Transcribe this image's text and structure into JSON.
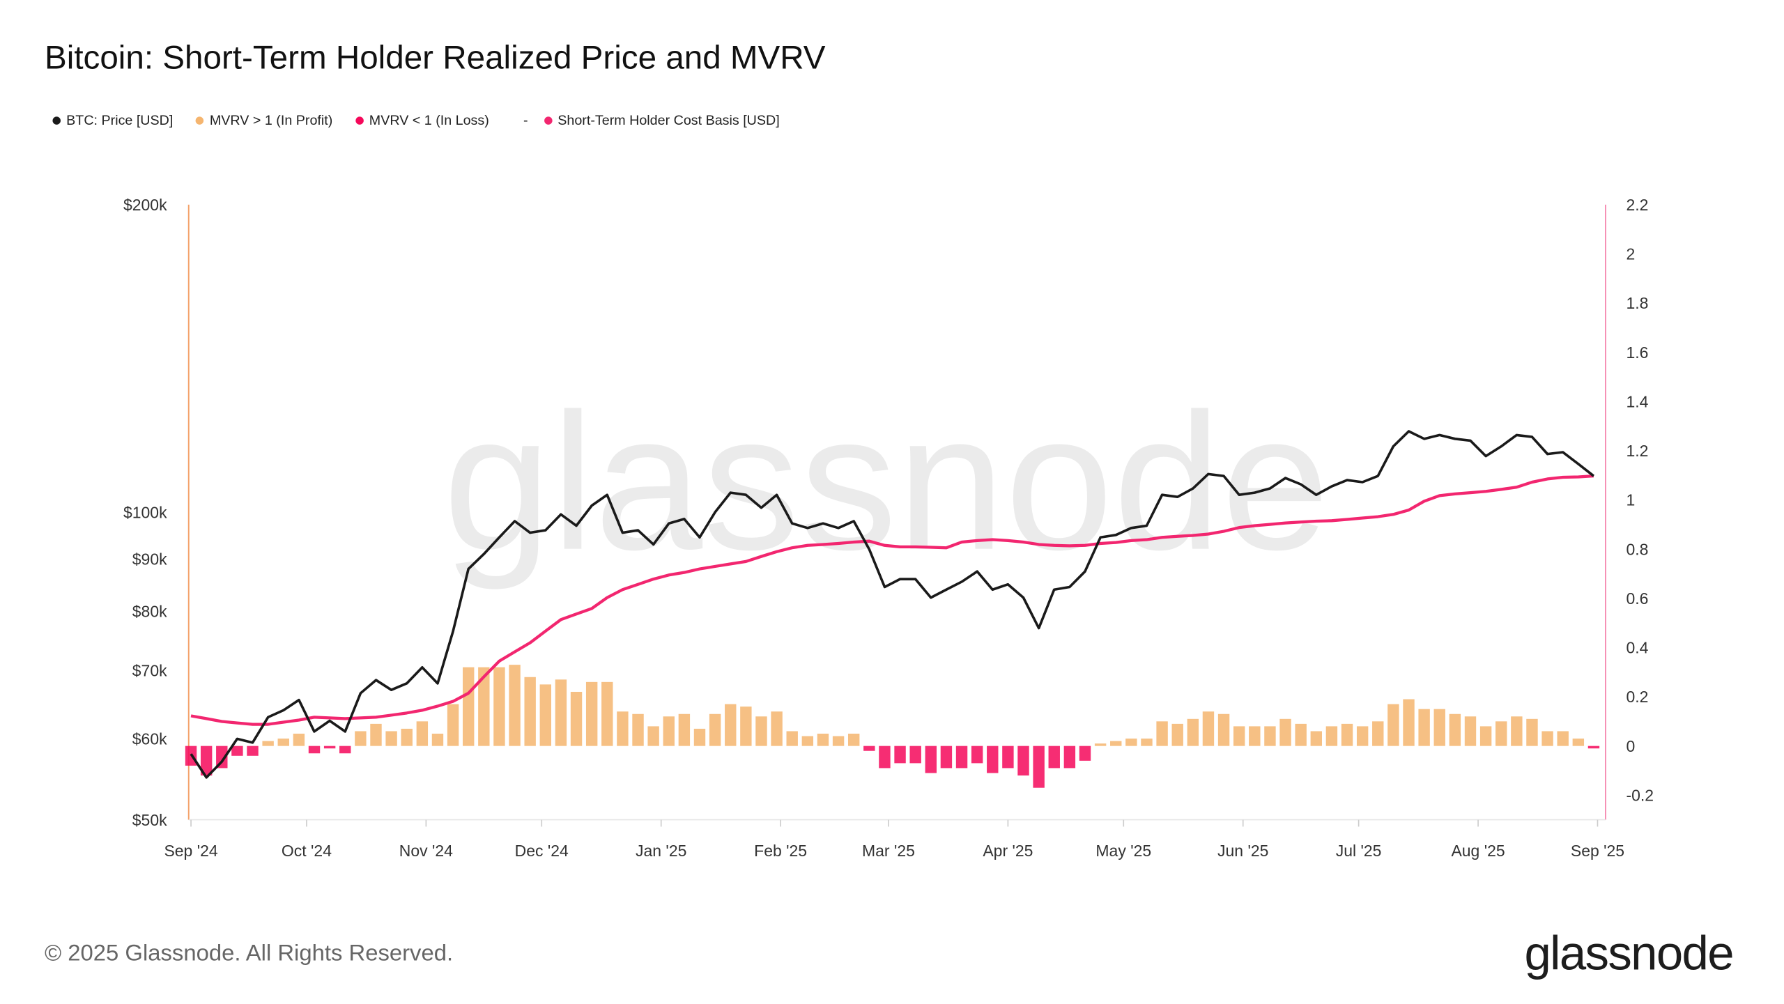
{
  "title": "Bitcoin: Short-Term Holder Realized Price and MVRV",
  "legend": [
    {
      "label": "BTC: Price [USD]",
      "color": "#1a1a1a"
    },
    {
      "label": "MVRV > 1 (In Profit)",
      "color": "#f5b56f"
    },
    {
      "label": "MVRV < 1 (In Loss)",
      "color": "#f5085a"
    },
    {
      "label": "Short-Term Holder Cost Basis [USD]",
      "color": "#f2266f"
    }
  ],
  "legend_separator": "-",
  "watermark": "glassnode",
  "footer": "© 2025 Glassnode. All Rights Reserved.",
  "logo": "glassnode",
  "chart_data": {
    "type": "line",
    "title": "Bitcoin: Short-Term Holder Realized Price and MVRV",
    "left_axis": {
      "scale": "log",
      "range": [
        50000,
        200000
      ],
      "ticks": [
        {
          "value": 200000,
          "label": "$200k"
        },
        {
          "value": 100000,
          "label": "$100k"
        },
        {
          "value": 90000,
          "label": "$90k"
        },
        {
          "value": 80000,
          "label": "$80k"
        },
        {
          "value": 70000,
          "label": "$70k"
        },
        {
          "value": 60000,
          "label": "$60k"
        },
        {
          "value": 50000,
          "label": "$50k"
        }
      ]
    },
    "right_axis": {
      "scale": "linear",
      "range": [
        -0.3,
        2.2
      ],
      "ticks": [
        "2.2",
        "2",
        "1.8",
        "1.6",
        "1.4",
        "1.2",
        "1",
        "0.8",
        "0.6",
        "0.4",
        "0.2",
        "0",
        "-0.2"
      ]
    },
    "x_axis": {
      "range": [
        "2024-09-01",
        "2025-09-01"
      ],
      "ticks": [
        {
          "date": "2024-09-01",
          "label": "Sep '24"
        },
        {
          "date": "2024-10-01",
          "label": "Oct '24"
        },
        {
          "date": "2024-11-01",
          "label": "Nov '24"
        },
        {
          "date": "2024-12-01",
          "label": "Dec '24"
        },
        {
          "date": "2025-01-01",
          "label": "Jan '25"
        },
        {
          "date": "2025-02-01",
          "label": "Feb '25"
        },
        {
          "date": "2025-03-01",
          "label": "Mar '25"
        },
        {
          "date": "2025-04-01",
          "label": "Apr '25"
        },
        {
          "date": "2025-05-01",
          "label": "May '25"
        },
        {
          "date": "2025-06-01",
          "label": "Jun '25"
        },
        {
          "date": "2025-07-01",
          "label": "Jul '25"
        },
        {
          "date": "2025-08-01",
          "label": "Aug '25"
        },
        {
          "date": "2025-09-01",
          "label": "Sep '25"
        }
      ]
    },
    "grid": false,
    "legend_placement": "top-left",
    "x": [
      "2024-09-01",
      "2024-09-05",
      "2024-09-09",
      "2024-09-13",
      "2024-09-17",
      "2024-09-21",
      "2024-09-25",
      "2024-09-29",
      "2024-10-03",
      "2024-10-07",
      "2024-10-11",
      "2024-10-15",
      "2024-10-19",
      "2024-10-23",
      "2024-10-27",
      "2024-10-31",
      "2024-11-04",
      "2024-11-08",
      "2024-11-12",
      "2024-11-16",
      "2024-11-20",
      "2024-11-24",
      "2024-11-28",
      "2024-12-02",
      "2024-12-06",
      "2024-12-10",
      "2024-12-14",
      "2024-12-18",
      "2024-12-22",
      "2024-12-26",
      "2024-12-30",
      "2025-01-03",
      "2025-01-07",
      "2025-01-11",
      "2025-01-15",
      "2025-01-19",
      "2025-01-23",
      "2025-01-27",
      "2025-01-31",
      "2025-02-04",
      "2025-02-08",
      "2025-02-12",
      "2025-02-16",
      "2025-02-20",
      "2025-02-24",
      "2025-02-28",
      "2025-03-04",
      "2025-03-08",
      "2025-03-12",
      "2025-03-16",
      "2025-03-20",
      "2025-03-24",
      "2025-03-28",
      "2025-04-01",
      "2025-04-05",
      "2025-04-09",
      "2025-04-13",
      "2025-04-17",
      "2025-04-21",
      "2025-04-25",
      "2025-04-29",
      "2025-05-03",
      "2025-05-07",
      "2025-05-11",
      "2025-05-15",
      "2025-05-19",
      "2025-05-23",
      "2025-05-27",
      "2025-05-31",
      "2025-06-04",
      "2025-06-08",
      "2025-06-12",
      "2025-06-16",
      "2025-06-20",
      "2025-06-24",
      "2025-06-28",
      "2025-07-02",
      "2025-07-06",
      "2025-07-10",
      "2025-07-14",
      "2025-07-18",
      "2025-07-22",
      "2025-07-26",
      "2025-07-30",
      "2025-08-03",
      "2025-08-07",
      "2025-08-11",
      "2025-08-15",
      "2025-08-19",
      "2025-08-23",
      "2025-08-27",
      "2025-08-31"
    ],
    "series": [
      {
        "name": "BTC: Price [USD]",
        "axis": "left",
        "kind": "line",
        "color": "#1a1a1a",
        "values": [
          58000,
          55000,
          57000,
          60000,
          59500,
          63000,
          64000,
          65500,
          61000,
          62500,
          61000,
          66500,
          68500,
          67000,
          68000,
          70500,
          68000,
          76500,
          88000,
          91000,
          94500,
          98000,
          95500,
          96000,
          99500,
          97000,
          101500,
          104000,
          95500,
          96000,
          93000,
          97500,
          98500,
          94500,
          100000,
          104500,
          104000,
          101000,
          104000,
          97500,
          96500,
          97500,
          96500,
          98000,
          92000,
          84500,
          86000,
          86000,
          82500,
          84000,
          85500,
          87500,
          84000,
          85000,
          82500,
          77000,
          84000,
          84500,
          87500,
          94500,
          95000,
          96500,
          97000,
          104000,
          103500,
          105500,
          109000,
          108500,
          104000,
          104500,
          105500,
          108000,
          106500,
          104000,
          106000,
          107500,
          107000,
          108500,
          116000,
          120000,
          118000,
          119000,
          118000,
          117500,
          113500,
          116000,
          119000,
          118500,
          114000,
          114500,
          111500,
          108500
        ]
      },
      {
        "name": "Short-Term Holder Cost Basis [USD]",
        "axis": "left",
        "kind": "line",
        "color": "#f2266f",
        "values": [
          63200,
          62800,
          62400,
          62200,
          62000,
          62000,
          62300,
          62600,
          63000,
          62900,
          62800,
          62900,
          63000,
          63300,
          63600,
          64000,
          64600,
          65300,
          66500,
          69000,
          71500,
          73000,
          74500,
          76500,
          78500,
          79500,
          80500,
          82500,
          84000,
          85000,
          86000,
          86800,
          87300,
          88000,
          88500,
          89000,
          89500,
          90500,
          91500,
          92300,
          92800,
          93000,
          93200,
          93500,
          93700,
          92800,
          92500,
          92500,
          92400,
          92300,
          93500,
          93800,
          94000,
          93800,
          93500,
          93000,
          92800,
          92700,
          92800,
          93200,
          93400,
          93800,
          94000,
          94500,
          94700,
          94900,
          95200,
          95800,
          96600,
          97000,
          97300,
          97600,
          97800,
          98000,
          98100,
          98400,
          98700,
          99000,
          99500,
          100500,
          102500,
          103800,
          104200,
          104500,
          104800,
          105300,
          105800,
          107000,
          107800,
          108200,
          108300,
          108500
        ]
      },
      {
        "name": "MVRV",
        "axis": "right",
        "kind": "bar",
        "positive_color": "#f5b56f",
        "negative_color": "#f5085a",
        "values": [
          -0.08,
          -0.12,
          -0.09,
          -0.04,
          -0.04,
          0.02,
          0.03,
          0.05,
          -0.03,
          -0.01,
          -0.03,
          0.06,
          0.09,
          0.06,
          0.07,
          0.1,
          0.05,
          0.17,
          0.32,
          0.32,
          0.32,
          0.33,
          0.28,
          0.25,
          0.27,
          0.22,
          0.26,
          0.26,
          0.14,
          0.13,
          0.08,
          0.12,
          0.13,
          0.07,
          0.13,
          0.17,
          0.16,
          0.12,
          0.14,
          0.06,
          0.04,
          0.05,
          0.04,
          0.05,
          -0.02,
          -0.09,
          -0.07,
          -0.07,
          -0.11,
          -0.09,
          -0.09,
          -0.07,
          -0.11,
          -0.09,
          -0.12,
          -0.17,
          -0.09,
          -0.09,
          -0.06,
          0.01,
          0.02,
          0.03,
          0.03,
          0.1,
          0.09,
          0.11,
          0.14,
          0.13,
          0.08,
          0.08,
          0.08,
          0.11,
          0.09,
          0.06,
          0.08,
          0.09,
          0.08,
          0.1,
          0.17,
          0.19,
          0.15,
          0.15,
          0.13,
          0.12,
          0.08,
          0.1,
          0.12,
          0.11,
          0.06,
          0.06,
          0.03,
          -0.01
        ]
      }
    ]
  }
}
